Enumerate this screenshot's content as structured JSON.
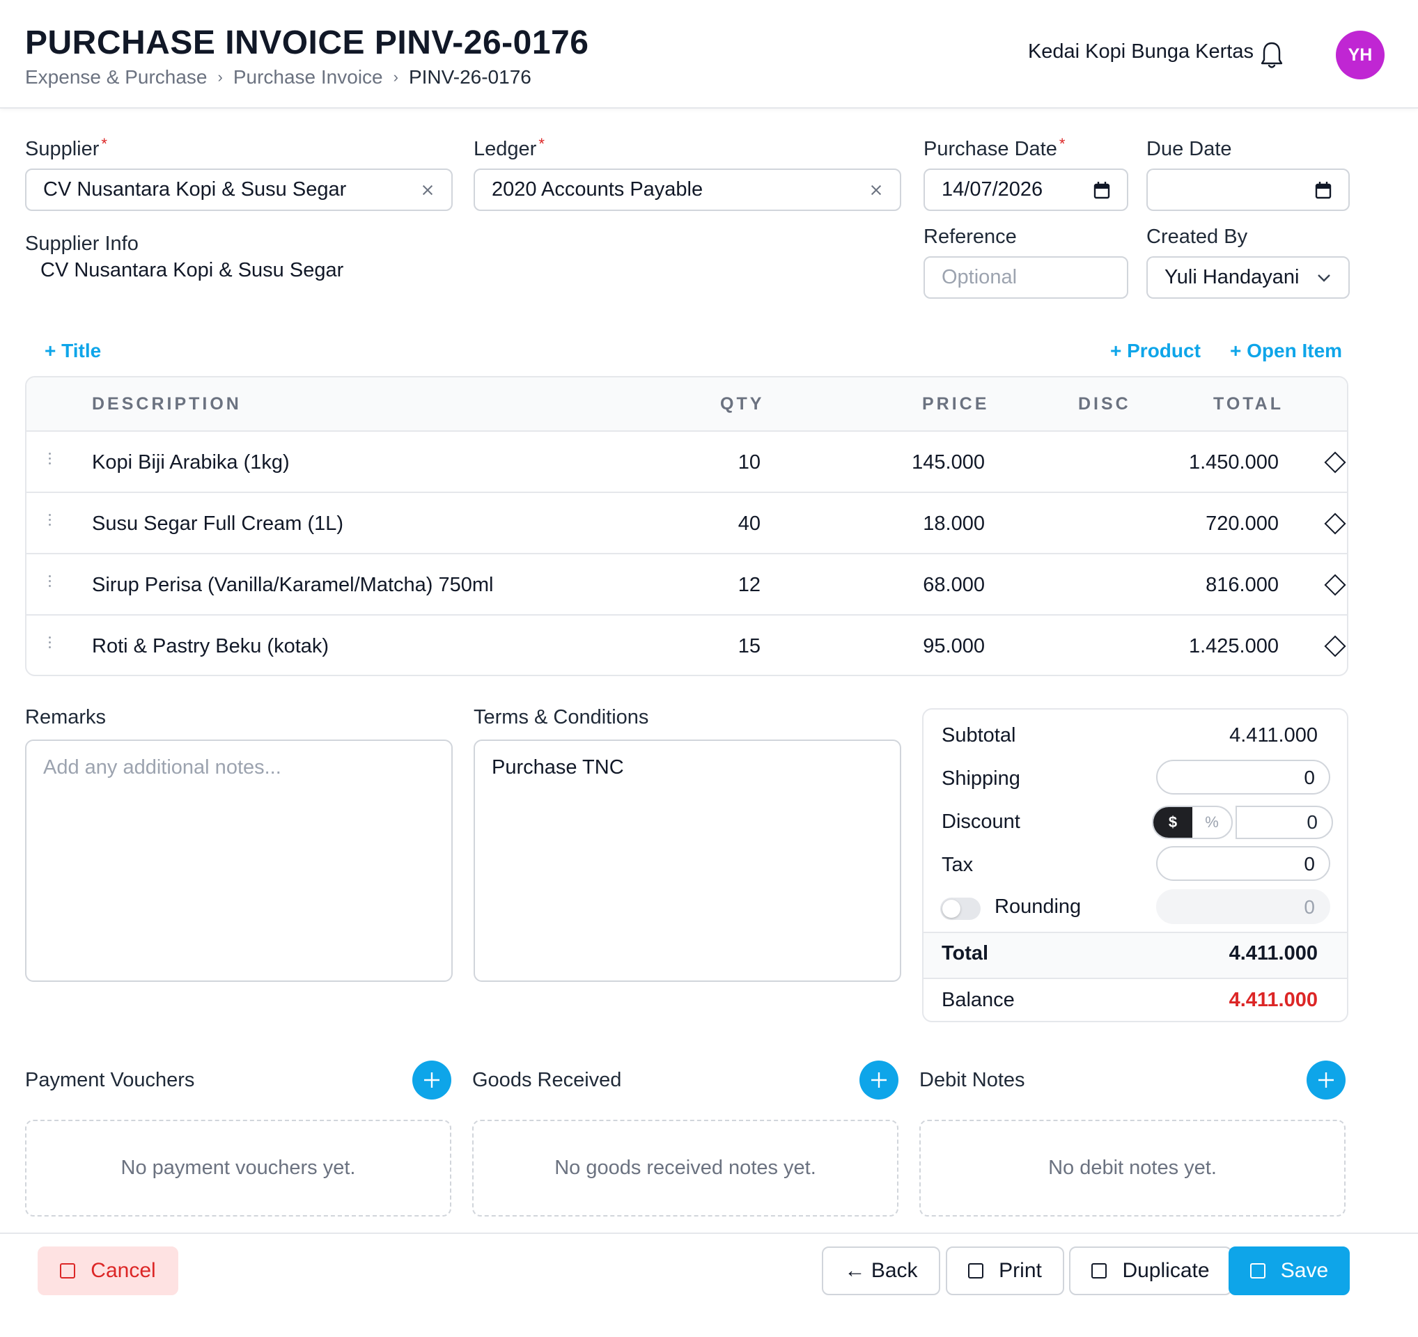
{
  "header": {
    "title": "PURCHASE INVOICE PINV-26-0176",
    "breadcrumb": [
      "Expense & Purchase",
      "Purchase Invoice",
      "PINV-26-0176"
    ],
    "company": "Kedai Kopi Bunga Kertas",
    "avatar_initials": "YH",
    "avatar_color": "#c026d3"
  },
  "form": {
    "supplier_label": "Supplier",
    "supplier_value": "CV Nusantara Kopi & Susu Segar",
    "ledger_label": "Ledger",
    "ledger_value": "2020 Accounts Payable",
    "purchase_date_label": "Purchase Date",
    "purchase_date_value": "14/07/2026",
    "due_date_label": "Due Date",
    "due_date_value": "",
    "supplier_info_label": "Supplier Info",
    "supplier_info_value": "CV Nusantara Kopi & Susu Segar",
    "reference_label": "Reference",
    "reference_placeholder": "Optional",
    "created_by_label": "Created By",
    "created_by_value": "Yuli Handayani",
    "required_mark": "*"
  },
  "actions": {
    "add_title": "+ Title",
    "add_product": "+ Product",
    "add_open_item": "+ Open Item"
  },
  "table": {
    "headers": {
      "description": "DESCRIPTION",
      "qty": "QTY",
      "price": "PRICE",
      "disc": "DISC",
      "total": "TOTAL"
    },
    "rows": [
      {
        "description": "Kopi Biji Arabika (1kg)",
        "qty": "10",
        "price": "145.000",
        "disc": "",
        "total": "1.450.000"
      },
      {
        "description": "Susu Segar Full Cream (1L)",
        "qty": "40",
        "price": "18.000",
        "disc": "",
        "total": "720.000"
      },
      {
        "description": "Sirup Perisa (Vanilla/Karamel/Matcha) 750ml",
        "qty": "12",
        "price": "68.000",
        "disc": "",
        "total": "816.000"
      },
      {
        "description": "Roti & Pastry Beku (kotak)",
        "qty": "15",
        "price": "95.000",
        "disc": "",
        "total": "1.425.000"
      }
    ]
  },
  "remarks": {
    "label": "Remarks",
    "placeholder": "Add any additional notes..."
  },
  "terms": {
    "label": "Terms & Conditions",
    "value": "Purchase TNC"
  },
  "summary": {
    "subtotal_label": "Subtotal",
    "subtotal_value": "4.411.000",
    "shipping_label": "Shipping",
    "shipping_value": "0",
    "discount_label": "Discount",
    "discount_mode_amount": "$",
    "discount_mode_percent": "%",
    "discount_value": "0",
    "tax_label": "Tax",
    "tax_value": "0",
    "rounding_label": "Rounding",
    "rounding_value": "0",
    "rounding_enabled": false,
    "total_label": "Total",
    "total_value": "4.411.000",
    "balance_label": "Balance",
    "balance_value": "4.411.000",
    "balance_color": "#dc2626"
  },
  "related": {
    "payment_vouchers": {
      "title": "Payment Vouchers",
      "empty": "No payment vouchers yet."
    },
    "goods_received": {
      "title": "Goods Received",
      "empty": "No goods received notes yet."
    },
    "debit_notes": {
      "title": "Debit Notes",
      "empty": "No debit notes yet."
    }
  },
  "footer": {
    "cancel": "Cancel",
    "back": "← Back",
    "print": "Print",
    "duplicate": "Duplicate",
    "save": "Save"
  },
  "colors": {
    "accent": "#0ea5e9",
    "danger": "#dc2626"
  }
}
